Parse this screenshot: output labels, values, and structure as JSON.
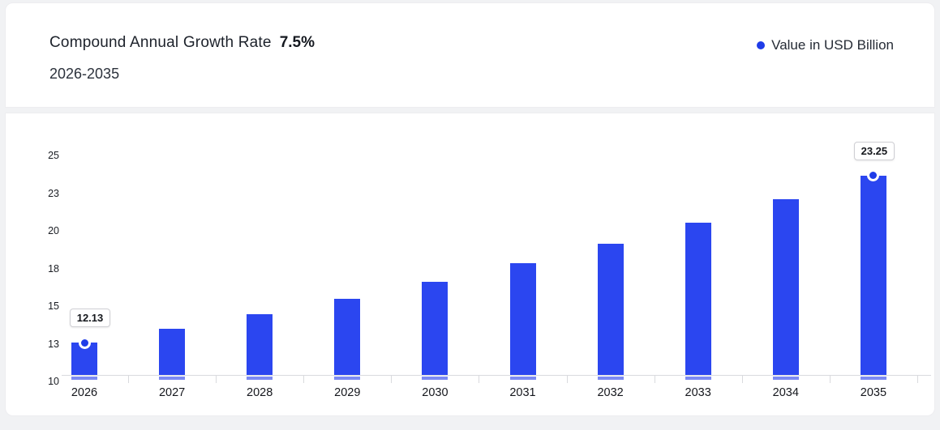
{
  "header": {
    "title": "Compound Annual Growth Rate",
    "cagr_value": "7.5%",
    "subtitle": "2026-2035"
  },
  "legend": {
    "label": "Value in USD Billion",
    "dot_color": "#1f3ce8"
  },
  "colors": {
    "bar": "#2b46f0",
    "bar_base": "#7584f2",
    "axis": "#d9dade"
  },
  "chart_data": {
    "type": "bar",
    "title": "Compound Annual Growth Rate 7.5% 2026-2035",
    "categories": [
      "2026",
      "2027",
      "2028",
      "2029",
      "2030",
      "2031",
      "2032",
      "2033",
      "2034",
      "2035"
    ],
    "values": [
      12.13,
      13.04,
      14.02,
      15.07,
      16.2,
      17.42,
      18.72,
      20.13,
      21.64,
      23.25
    ],
    "series_name": "Value in USD Billion",
    "xlabel": "",
    "ylabel": "",
    "ylim": [
      10,
      25.8
    ],
    "y_ticks": [
      {
        "value": 10,
        "label": "10"
      },
      {
        "value": 12.5,
        "label": "13"
      },
      {
        "value": 15,
        "label": "15"
      },
      {
        "value": 17.5,
        "label": "18"
      },
      {
        "value": 20,
        "label": "20"
      },
      {
        "value": 22.5,
        "label": "23"
      },
      {
        "value": 25,
        "label": "25"
      }
    ],
    "grid": false,
    "legend_position": "top-right",
    "marked_points": [
      {
        "index": 0,
        "label": "12.13",
        "dx": 6
      },
      {
        "index": 9,
        "label": "23.25",
        "dx": 0
      }
    ]
  }
}
